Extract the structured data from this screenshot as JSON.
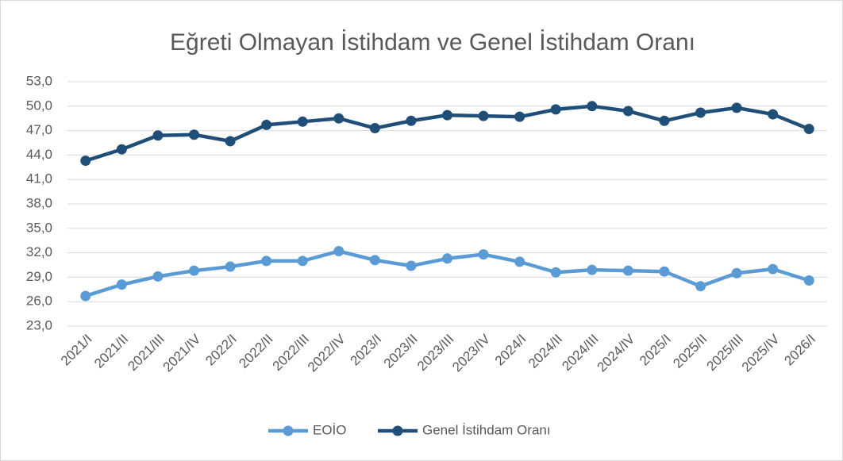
{
  "chart_data": {
    "type": "line",
    "title": "Eğreti Olmayan İstihdam ve Genel İstihdam Oranı",
    "categories": [
      "2021/I",
      "2021/II",
      "2021/III",
      "2021/IV",
      "2022/I",
      "2022/II",
      "2022/III",
      "2022/IV",
      "2023/I",
      "2023/II",
      "2023/III",
      "2023/IV",
      "2024/I",
      "2024/II",
      "2024/III",
      "2024/IV",
      "2025/I",
      "2025/II",
      "2025/III",
      "2025/IV",
      "2026/I"
    ],
    "series": [
      {
        "name": "EOİO",
        "color": "#5b9bd5",
        "values": [
          26.7,
          28.1,
          29.1,
          29.8,
          30.3,
          31.0,
          31.0,
          32.2,
          31.1,
          30.4,
          31.3,
          31.8,
          30.9,
          29.6,
          29.9,
          29.8,
          29.7,
          27.9,
          29.5,
          30.0,
          28.6
        ]
      },
      {
        "name": "Genel İstihdam Oranı",
        "color": "#1f4e79",
        "values": [
          43.3,
          44.7,
          46.4,
          46.5,
          45.7,
          47.7,
          48.1,
          48.5,
          47.3,
          48.2,
          48.9,
          48.8,
          48.7,
          49.6,
          50.0,
          49.4,
          48.2,
          49.2,
          49.8,
          49.0,
          47.2
        ]
      }
    ],
    "ylim": [
      23,
      53
    ],
    "yticks": [
      {
        "value": 23,
        "label": "23,0"
      },
      {
        "value": 26,
        "label": "26,0"
      },
      {
        "value": 29,
        "label": "29,0"
      },
      {
        "value": 32,
        "label": "32,0"
      },
      {
        "value": 35,
        "label": "35,0"
      },
      {
        "value": 38,
        "label": "38,0"
      },
      {
        "value": 41,
        "label": "41,0"
      },
      {
        "value": 44,
        "label": "44,0"
      },
      {
        "value": 47,
        "label": "47,0"
      },
      {
        "value": 50,
        "label": "50,0"
      },
      {
        "value": 53,
        "label": "53,0"
      }
    ],
    "grid": true,
    "legend": "bottom"
  }
}
